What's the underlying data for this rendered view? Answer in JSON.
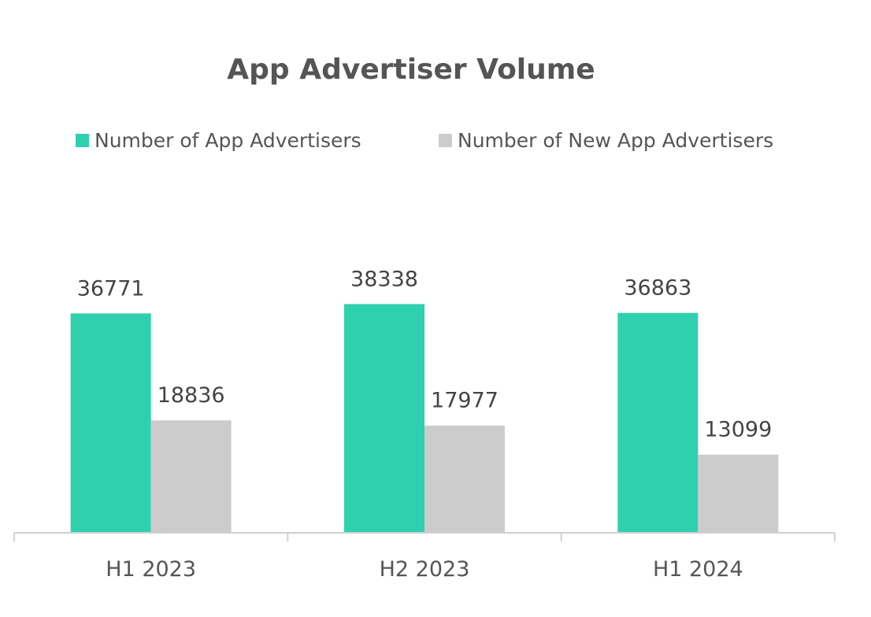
{
  "chart_data": {
    "type": "bar",
    "title": "App Advertiser Volume",
    "categories": [
      "H1 2023",
      "H2 2023",
      "H1 2024"
    ],
    "series": [
      {
        "name": "Number of App Advertisers",
        "color": "#2fd0ae",
        "values": [
          36771,
          38338,
          36863
        ]
      },
      {
        "name": "Number of New App Advertisers",
        "color": "#cccccc",
        "values": [
          18836,
          17977,
          13099
        ]
      }
    ],
    "xlabel": "",
    "ylabel": "",
    "ylim": [
      0,
      50000
    ],
    "grid": false,
    "legend_position": "top"
  }
}
